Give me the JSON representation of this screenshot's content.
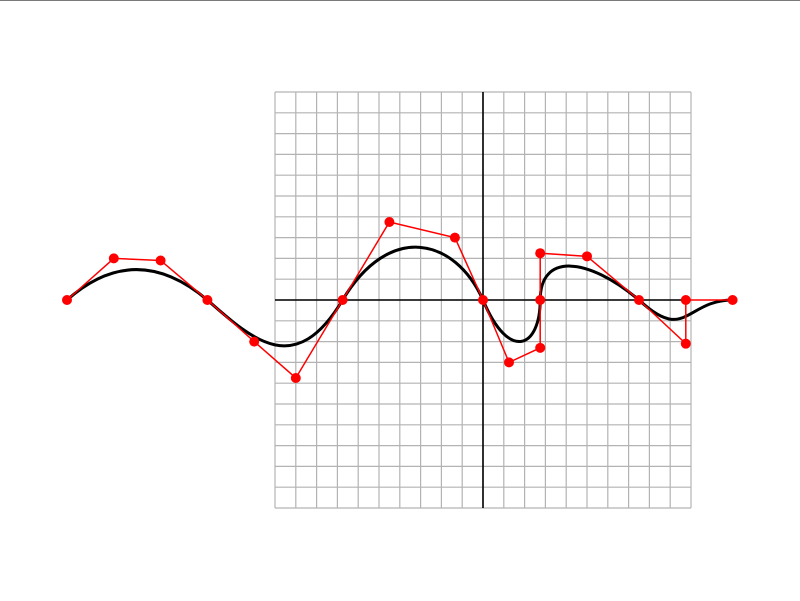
{
  "colors": {
    "background": "#ffffff",
    "grid": "#b3b3b3",
    "axes": "#000000",
    "curve": "#000000",
    "control_polygon": "#ff0000",
    "control_points": "#ff0000"
  },
  "diagram": {
    "grid_cells": 20,
    "control_points": [
      [
        -10,
        0
      ],
      [
        -8.875,
        1
      ],
      [
        -7.75,
        0.95
      ],
      [
        -6.625,
        0
      ],
      [
        -5.5,
        -1
      ],
      [
        -4.5,
        -1.875
      ],
      [
        -3.375,
        0
      ],
      [
        -2.25,
        1.875
      ],
      [
        -0.675,
        1.5
      ],
      [
        0,
        0
      ],
      [
        0.625,
        -1.5
      ],
      [
        1.375,
        -1.15
      ],
      [
        1.375,
        0
      ],
      [
        1.375,
        1.125
      ],
      [
        2.5,
        1.05
      ],
      [
        3.75,
        0
      ],
      [
        4.875,
        -1.05
      ],
      [
        4.875,
        0
      ],
      [
        6,
        0
      ]
    ],
    "segments": [
      [
        0,
        1,
        2,
        3
      ],
      [
        3,
        4,
        5,
        6
      ],
      [
        6,
        7,
        8,
        9
      ],
      [
        9,
        10,
        11,
        12
      ],
      [
        12,
        13,
        14,
        15
      ],
      [
        15,
        16,
        17,
        18
      ]
    ]
  }
}
